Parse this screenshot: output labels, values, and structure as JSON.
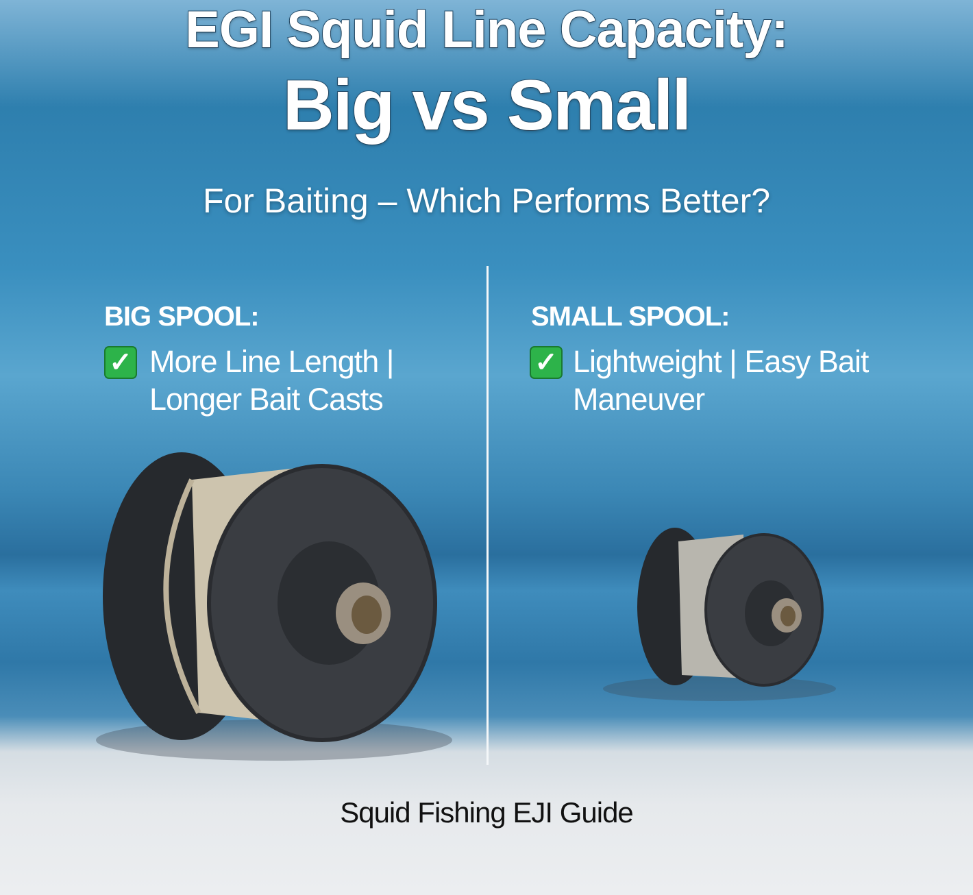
{
  "title": {
    "line1": "EGI Squid Line Capacity:",
    "line2": "Big vs Small"
  },
  "subtitle": "For Baiting – Which Performs Better?",
  "left": {
    "heading": "BIG SPOOL:",
    "icon": "check-mark-icon",
    "line1": "More Line Length |",
    "line2": "Longer Bait Casts"
  },
  "right": {
    "heading": "SMALL SPOOL:",
    "icon": "check-mark-icon",
    "line1": "Lightweight | Easy Bait",
    "line2": "Maneuver"
  },
  "footer": "Squid Fishing EJI Guide",
  "colors": {
    "check": "#2db34a",
    "spool": "#3a3d42",
    "line": "#cfc6b0"
  }
}
